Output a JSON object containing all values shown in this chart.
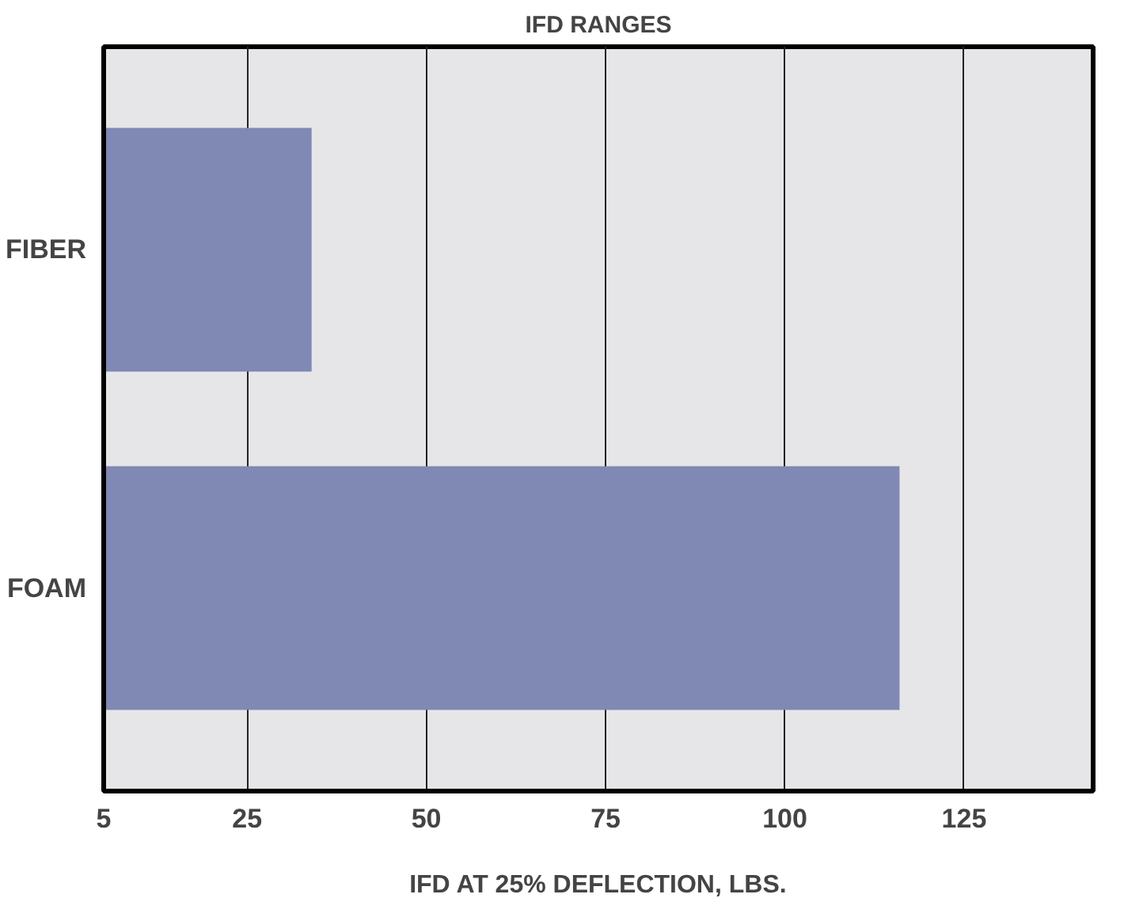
{
  "chart_data": {
    "type": "bar",
    "orientation": "horizontal",
    "title": "IFD RANGES",
    "xlabel": "IFD AT 25% DEFLECTION, LBS.",
    "categories": [
      "FIBER",
      "FOAM"
    ],
    "values": [
      34,
      116
    ],
    "color": "#8088b4",
    "xlim": [
      5,
      143
    ],
    "xticks": [
      5,
      25,
      50,
      75,
      100,
      125
    ],
    "grid": "x"
  }
}
